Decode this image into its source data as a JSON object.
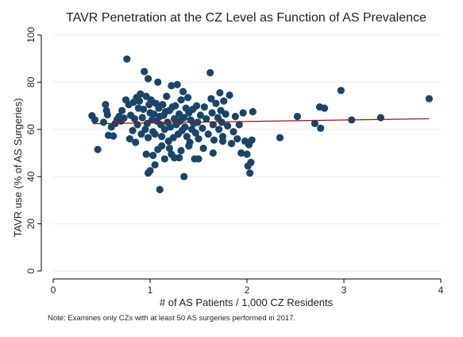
{
  "chart_data": {
    "type": "scatter",
    "title": "TAVR Penetration at the CZ Level as Function of AS Prevalence",
    "xlabel": "# of AS Patients / 1,000 CZ Residents",
    "ylabel": "TAVR use (% of AS Surgeries)",
    "note": "Note: Examines only CZs with at least 50 AS surgeries performed in 2017.",
    "xlim": [
      0,
      4
    ],
    "ylim": [
      0,
      100
    ],
    "xticks": [
      0,
      1,
      2,
      3,
      4
    ],
    "yticks": [
      0,
      20,
      40,
      60,
      80,
      100
    ],
    "grid": "horizontal",
    "colors": {
      "points": "#1c4468",
      "fit_line": "#8b1a1a",
      "grid": "#eaeaea",
      "axis": "#000000"
    },
    "fit_line": {
      "x": [
        0.41,
        3.88
      ],
      "y": [
        62.4,
        64.5
      ]
    },
    "points": [
      [
        0.4,
        65.8
      ],
      [
        0.43,
        64
      ],
      [
        0.46,
        51.5
      ],
      [
        0.52,
        63
      ],
      [
        0.54,
        70.5
      ],
      [
        0.55,
        68
      ],
      [
        0.56,
        66.2
      ],
      [
        0.57,
        57.5
      ],
      [
        0.6,
        61
      ],
      [
        0.62,
        57.2
      ],
      [
        0.64,
        62.5
      ],
      [
        0.66,
        64.2
      ],
      [
        0.68,
        65.5
      ],
      [
        0.7,
        63.5
      ],
      [
        0.71,
        68
      ],
      [
        0.73,
        64.8
      ],
      [
        0.76,
        89.8
      ],
      [
        0.75,
        72.5
      ],
      [
        0.78,
        70.5
      ],
      [
        0.79,
        56
      ],
      [
        0.8,
        66
      ],
      [
        0.82,
        59.5
      ],
      [
        0.83,
        71.5
      ],
      [
        0.84,
        64.5
      ],
      [
        0.85,
        54.5
      ],
      [
        0.86,
        73.5
      ],
      [
        0.87,
        62
      ],
      [
        0.88,
        69
      ],
      [
        0.89,
        72
      ],
      [
        0.9,
        75
      ],
      [
        0.91,
        58
      ],
      [
        0.92,
        65
      ],
      [
        0.93,
        68.5
      ],
      [
        0.94,
        84.5
      ],
      [
        0.95,
        60
      ],
      [
        0.96,
        74
      ],
      [
        0.97,
        62.5
      ],
      [
        0.98,
        56.5
      ],
      [
        0.99,
        70.5
      ],
      [
        1.0,
        67
      ],
      [
        1.01,
        72.5
      ],
      [
        1.02,
        64
      ],
      [
        0.98,
        81.5
      ],
      [
        1.03,
        59
      ],
      [
        1.04,
        66.5
      ],
      [
        1.05,
        58
      ],
      [
        1.06,
        71
      ],
      [
        1.07,
        63.5
      ],
      [
        1.08,
        80
      ],
      [
        1.09,
        69
      ],
      [
        1.1,
        65.5
      ],
      [
        1.11,
        62
      ],
      [
        1.12,
        57
      ],
      [
        1.13,
        70.5
      ],
      [
        1.14,
        66
      ],
      [
        1.15,
        60
      ],
      [
        1.16,
        67.5
      ],
      [
        1.17,
        74
      ],
      [
        1.18,
        63
      ],
      [
        1.19,
        55
      ],
      [
        1.2,
        68
      ],
      [
        1.21,
        61
      ],
      [
        1.22,
        78.5
      ],
      [
        1.23,
        69.5
      ],
      [
        1.24,
        56.5
      ],
      [
        1.25,
        64.5
      ],
      [
        1.26,
        70
      ],
      [
        1.27,
        62
      ],
      [
        1.28,
        79
      ],
      [
        1.29,
        58
      ],
      [
        1.3,
        66.5
      ],
      [
        1.31,
        63.5
      ],
      [
        1.32,
        72.5
      ],
      [
        1.33,
        59.5
      ],
      [
        1.34,
        76
      ],
      [
        1.35,
        65
      ],
      [
        1.36,
        61
      ],
      [
        1.37,
        69
      ],
      [
        1.38,
        57
      ],
      [
        1.39,
        73.5
      ],
      [
        1.4,
        67
      ],
      [
        1.41,
        54.5
      ],
      [
        1.42,
        64
      ],
      [
        1.43,
        60
      ],
      [
        1.44,
        68.5
      ],
      [
        1.45,
        62.5
      ],
      [
        1.46,
        47.5
      ],
      [
        1.47,
        58.5
      ],
      [
        1.48,
        70
      ],
      [
        1.49,
        63
      ],
      [
        1.5,
        56
      ],
      [
        1.52,
        66
      ],
      [
        1.54,
        60.5
      ],
      [
        1.56,
        69.5
      ],
      [
        1.58,
        64.5
      ],
      [
        1.6,
        58
      ],
      [
        1.62,
        84
      ],
      [
        1.63,
        73
      ],
      [
        1.64,
        67
      ],
      [
        1.65,
        62
      ],
      [
        1.66,
        55.5
      ],
      [
        1.68,
        71
      ],
      [
        1.7,
        65
      ],
      [
        1.71,
        60
      ],
      [
        1.72,
        75.5
      ],
      [
        1.73,
        68
      ],
      [
        1.74,
        63
      ],
      [
        1.75,
        57
      ],
      [
        1.76,
        72
      ],
      [
        1.78,
        66.5
      ],
      [
        1.8,
        61.5
      ],
      [
        1.82,
        74.5
      ],
      [
        1.84,
        54
      ],
      [
        1.86,
        59
      ],
      [
        1.88,
        65.5
      ],
      [
        1.9,
        56
      ],
      [
        1.92,
        62
      ],
      [
        1.94,
        50
      ],
      [
        1.96,
        67
      ],
      [
        1.98,
        55
      ],
      [
        2.0,
        49.5
      ],
      [
        2.01,
        44.5
      ],
      [
        2.02,
        53.5
      ],
      [
        2.03,
        41.5
      ],
      [
        2.04,
        46
      ],
      [
        2.05,
        55.5
      ],
      [
        2.06,
        67.5
      ],
      [
        0.96,
        49.5
      ],
      [
        1.0,
        42.5
      ],
      [
        1.03,
        49
      ],
      [
        1.08,
        51.5
      ],
      [
        1.1,
        34.5
      ],
      [
        1.15,
        47.5
      ],
      [
        1.2,
        52
      ],
      [
        1.25,
        48
      ],
      [
        1.3,
        48
      ],
      [
        1.35,
        40
      ],
      [
        1.4,
        53
      ],
      [
        1.5,
        47.5
      ],
      [
        1.55,
        52
      ],
      [
        1.65,
        50
      ],
      [
        1.75,
        55
      ],
      [
        0.98,
        41.5
      ],
      [
        1.05,
        45
      ],
      [
        1.12,
        53
      ],
      [
        1.22,
        49.5
      ],
      [
        1.32,
        51
      ],
      [
        2.34,
        56.5
      ],
      [
        2.52,
        65.5
      ],
      [
        2.7,
        62.5
      ],
      [
        2.75,
        69.5
      ],
      [
        2.76,
        60.5
      ],
      [
        2.8,
        69
      ],
      [
        2.97,
        76.5
      ],
      [
        3.08,
        64
      ],
      [
        3.38,
        65
      ],
      [
        3.88,
        73
      ]
    ]
  }
}
